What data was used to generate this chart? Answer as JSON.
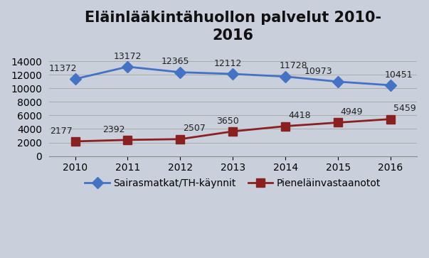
{
  "title": "Eläinlääkintähuollon palvelut 2010-\n2016",
  "years": [
    2010,
    2011,
    2012,
    2013,
    2014,
    2015,
    2016
  ],
  "series1_label": "Sairasmatkat/TH-käynnit",
  "series1_values": [
    11372,
    13172,
    12365,
    12112,
    11728,
    10973,
    10451
  ],
  "series1_color": "#4472C4",
  "series1_marker": "D",
  "series2_label": "Pieneläinvastaanotot",
  "series2_values": [
    2177,
    2392,
    2507,
    3650,
    4418,
    4949,
    5459
  ],
  "series2_color": "#8B2020",
  "series2_marker": "s",
  "ylim": [
    0,
    16000
  ],
  "yticks": [
    0,
    2000,
    4000,
    6000,
    8000,
    10000,
    12000,
    14000
  ],
  "background_color": "#C9D0DC",
  "plot_bg_color": "#C9D0DC",
  "title_fontsize": 15,
  "label_fontsize": 9,
  "tick_fontsize": 10,
  "legend_fontsize": 10,
  "line_width": 2.0,
  "marker_size": 8
}
